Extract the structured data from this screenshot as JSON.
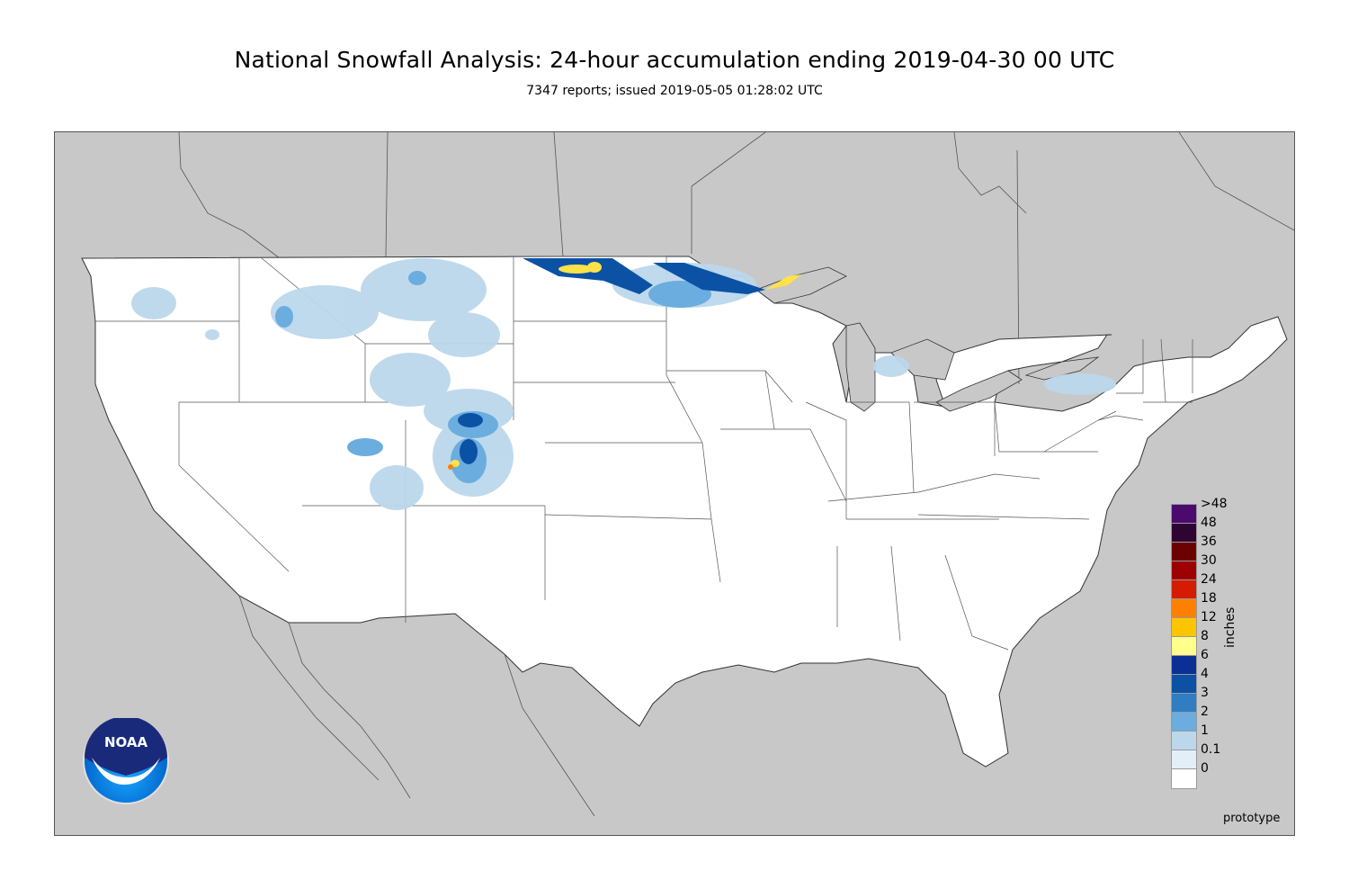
{
  "title": "National Snowfall Analysis: 24-hour accumulation ending 2019-04-30 00 UTC",
  "subtitle": "7347 reports; issued 2019-05-05 01:28:02 UTC",
  "logo_text": "NOAA",
  "footer_note": "prototype",
  "legend": {
    "units": "inches",
    "bins": [
      {
        "label": ">48",
        "color": "#4b0a6e"
      },
      {
        "label": "48",
        "color": "#2d0432"
      },
      {
        "label": "36",
        "color": "#6b0000"
      },
      {
        "label": "30",
        "color": "#9c0000"
      },
      {
        "label": "24",
        "color": "#d31c00"
      },
      {
        "label": "18",
        "color": "#ff8000"
      },
      {
        "label": "12",
        "color": "#ffc400"
      },
      {
        "label": "8",
        "color": "#ffff8c"
      },
      {
        "label": "6",
        "color": "#0c2f96"
      },
      {
        "label": "4",
        "color": "#0b52a5"
      },
      {
        "label": "3",
        "color": "#2f7ec1"
      },
      {
        "label": "2",
        "color": "#6badde"
      },
      {
        "label": "1",
        "color": "#bcd7ec"
      },
      {
        "label": "0.1",
        "color": "#e4eef6"
      },
      {
        "label": "0",
        "color": "#ffffff"
      }
    ]
  },
  "colors": {
    "ocean_background": "#c8c8c8",
    "land": "#ffffff",
    "border_lines": "#444444"
  }
}
